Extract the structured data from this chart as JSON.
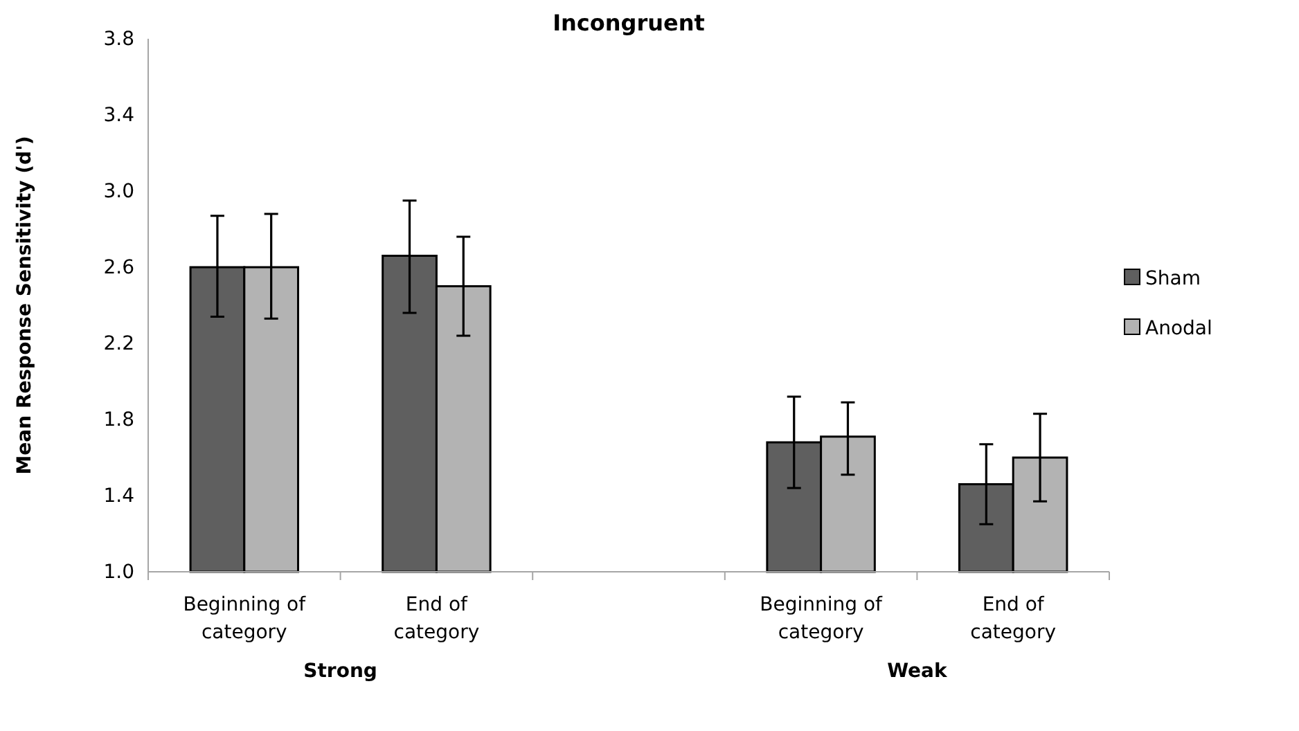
{
  "chart_data": {
    "type": "bar",
    "title": "Incongruent",
    "ylabel": "Mean Response Sensitivity (d')",
    "categories": [
      "Beginning of category",
      "End of category",
      null,
      "Beginning of category",
      "End of category"
    ],
    "series": [
      {
        "name": "Sham",
        "color": "#5f5f5f",
        "values": [
          2.6,
          2.66,
          null,
          1.68,
          1.46
        ],
        "errors": [
          [
            2.34,
            2.87
          ],
          [
            2.36,
            2.95
          ],
          null,
          [
            1.44,
            1.92
          ],
          [
            1.25,
            1.67
          ]
        ]
      },
      {
        "name": "Anodal",
        "color": "#b3b3b3",
        "values": [
          2.6,
          2.5,
          null,
          1.71,
          1.6
        ],
        "errors": [
          [
            2.33,
            2.88
          ],
          [
            2.24,
            2.76
          ],
          null,
          [
            1.51,
            1.89
          ],
          [
            1.37,
            1.83
          ]
        ]
      }
    ],
    "annotations": [
      "Strong",
      "Weak"
    ],
    "ylim": [
      1.0,
      3.8
    ],
    "yticks": [
      {
        "value": 1.0,
        "label": "1.0"
      },
      {
        "value": 1.4,
        "label": "1.4"
      },
      {
        "value": 1.8,
        "label": "1.8"
      },
      {
        "value": 2.2,
        "label": "2.2"
      },
      {
        "value": 2.6,
        "label": "2.6"
      },
      {
        "value": 3.0,
        "label": "3.0"
      },
      {
        "value": 3.4,
        "label": "3.4"
      },
      {
        "value": 3.8,
        "label": "3.8"
      }
    ],
    "grid": false,
    "legend": "right"
  }
}
